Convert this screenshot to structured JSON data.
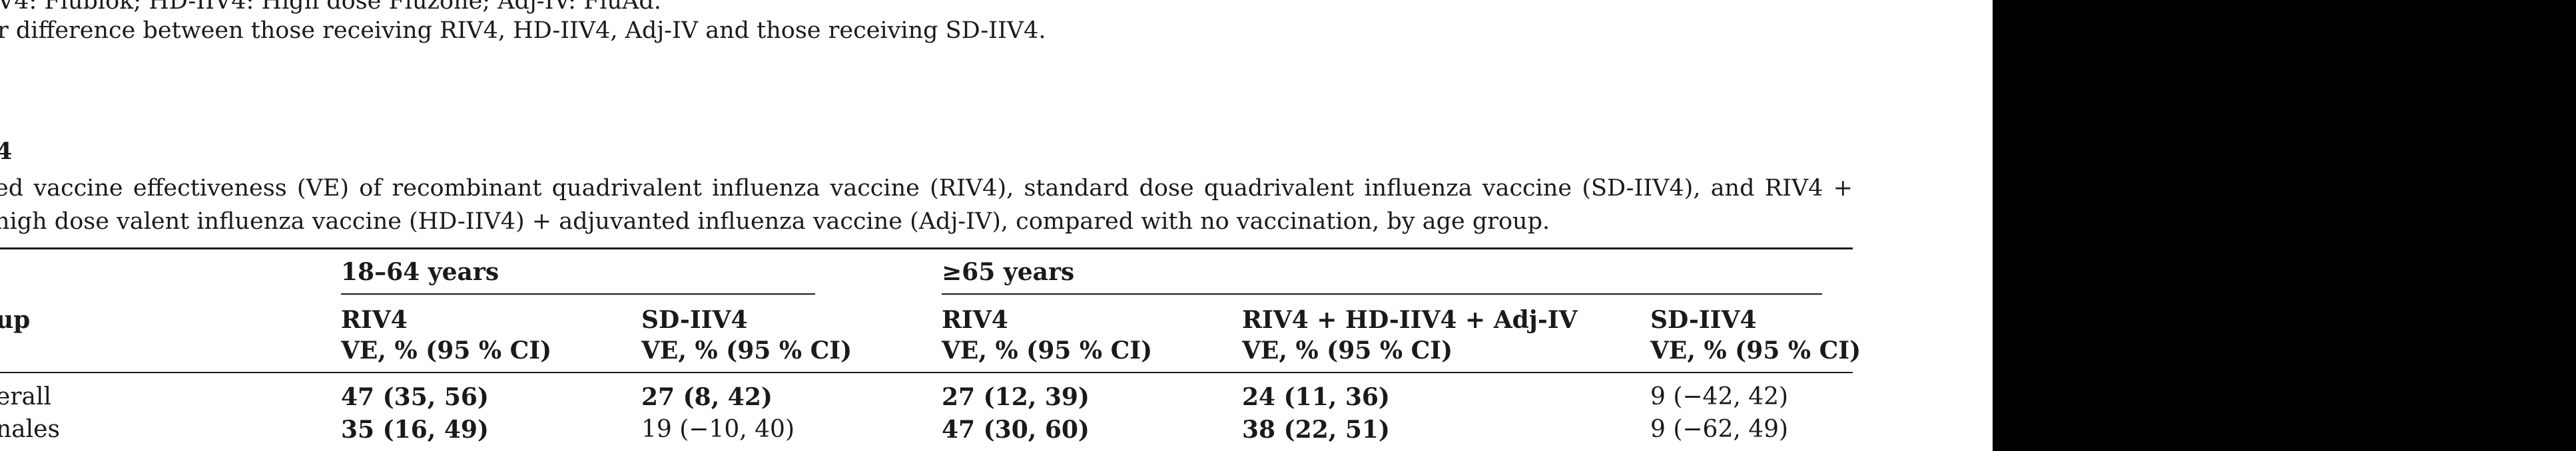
{
  "footnotes": [
    "V4: Flublok; HD-IIV4: High dose Fluzone; Adj-IV: FluAd.",
    "r difference between those receiving RIV4, HD-IIV4, Adj-IV and those receiving SD-IIV4."
  ],
  "table": {
    "label": "4",
    "caption": "ed vaccine effectiveness (VE) of recombinant quadrivalent influenza vaccine (RIV4), standard dose quadrivalent influenza vaccine (SD-IIV4), and RIV4 + high dose valent influenza vaccine (HD-IIV4) + adjuvanted influenza vaccine (Adj-IV), compared with no vaccination, by age group.",
    "row_header": "up",
    "group_headers": [
      "18–64 years",
      "≥65 years"
    ],
    "columns": [
      {
        "name": "RIV4",
        "sub": "VE, % (95 % CI)"
      },
      {
        "name": "SD-IIV4",
        "sub": "VE, % (95 % CI)"
      },
      {
        "name": "RIV4",
        "sub": "VE, % (95 % CI)"
      },
      {
        "name": "RIV4 + HD-IIV4 + Adj-IV",
        "sub": "VE, % (95 % CI)"
      },
      {
        "name": "SD-IIV4",
        "sub": "VE, % (95 % CI)"
      }
    ],
    "rows": [
      {
        "label": "erall",
        "cells": [
          {
            "text": "47 (35, 56)",
            "bold": true
          },
          {
            "text": "27 (8, 42)",
            "bold": true
          },
          {
            "text": "27 (12, 39)",
            "bold": true
          },
          {
            "text": "24 (11, 36)",
            "bold": true
          },
          {
            "text": "9 (−42, 42)",
            "bold": false
          }
        ]
      },
      {
        "label": "nales",
        "cells": [
          {
            "text": "35 (16, 49)",
            "bold": true
          },
          {
            "text": "19 (−10, 40)",
            "bold": false
          },
          {
            "text": "47 (30, 60)",
            "bold": true
          },
          {
            "text": "38 (22, 51)",
            "bold": true
          },
          {
            "text": "9 (−62, 49)",
            "bold": false
          }
        ]
      }
    ]
  }
}
